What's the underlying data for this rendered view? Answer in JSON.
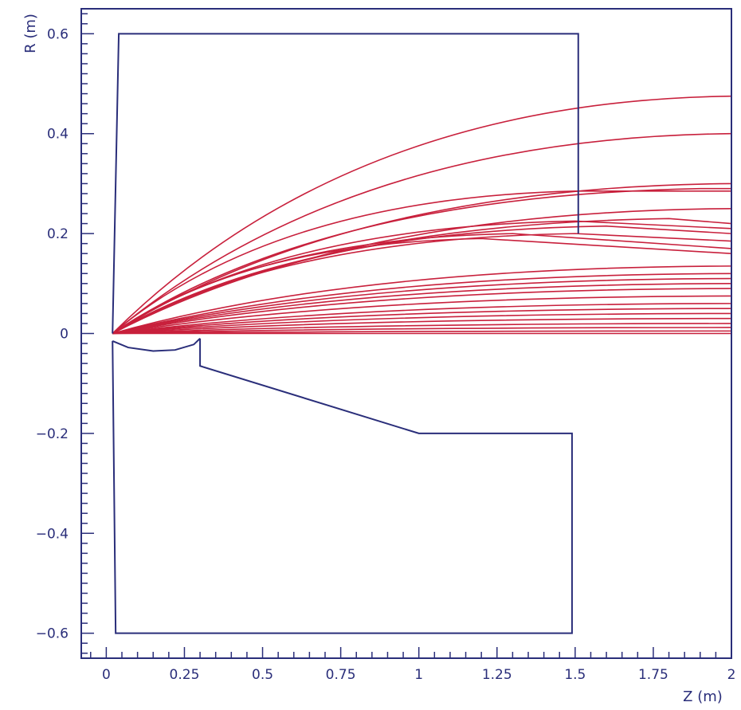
{
  "chart_data": {
    "type": "line",
    "title": "",
    "xlabel": "Z (m)",
    "ylabel": "R (m)",
    "xlim": [
      -0.08,
      2.0
    ],
    "ylim": [
      -0.65,
      0.65
    ],
    "xticks": [
      {
        "value": 0,
        "label": "0"
      },
      {
        "value": 0.25,
        "label": "0.25"
      },
      {
        "value": 0.5,
        "label": "0.5"
      },
      {
        "value": 0.75,
        "label": "0.75"
      },
      {
        "value": 1,
        "label": "1"
      },
      {
        "value": 1.25,
        "label": "1.25"
      },
      {
        "value": 1.5,
        "label": "1.5"
      },
      {
        "value": 1.75,
        "label": "1.75"
      },
      {
        "value": 2,
        "label": "2"
      }
    ],
    "x_minor_step": 0.05,
    "yticks": [
      {
        "value": 0.6,
        "label": "0.6"
      },
      {
        "value": 0.4,
        "label": "0.4"
      },
      {
        "value": 0.2,
        "label": "0.2"
      },
      {
        "value": 0,
        "label": "0"
      },
      {
        "value": -0.2,
        "label": "−0.2"
      },
      {
        "value": -0.4,
        "label": "−0.4"
      },
      {
        "value": -0.6,
        "label": "−0.6"
      }
    ],
    "y_minor_step": 0.04,
    "grid": false,
    "colors": {
      "frame": "#2a2e7a",
      "geometry": "#2a2e7a",
      "trajectories": "#c8203c"
    },
    "geometry": [
      {
        "points": [
          [
            0.02,
            0
          ],
          [
            0.04,
            0.6
          ],
          [
            1.51,
            0.6
          ],
          [
            1.51,
            0.2
          ]
        ]
      },
      {
        "points": [
          [
            0.02,
            -0.015
          ],
          [
            0.03,
            -0.6
          ],
          [
            1.49,
            -0.6
          ],
          [
            1.49,
            -0.2
          ],
          [
            1.0,
            -0.2
          ],
          [
            0.3,
            -0.065
          ],
          [
            0.3,
            -0.01
          ]
        ]
      },
      {
        "points": [
          [
            0.02,
            -0.015
          ],
          [
            0.07,
            -0.028
          ],
          [
            0.15,
            -0.035
          ],
          [
            0.22,
            -0.033
          ],
          [
            0.28,
            -0.022
          ],
          [
            0.3,
            -0.01
          ]
        ]
      }
    ],
    "trajectories": [
      {
        "end": [
          2.0,
          0.475
        ],
        "peak": null
      },
      {
        "end": [
          2.0,
          0.4
        ],
        "peak": null
      },
      {
        "end": [
          2.0,
          0.3
        ],
        "peak": [
          2.0,
          0.3
        ]
      },
      {
        "end": [
          2.0,
          0.285
        ],
        "peak": [
          1.5,
          0.285
        ]
      },
      {
        "end": [
          2.0,
          0.29
        ],
        "peak": [
          1.9,
          0.29
        ]
      },
      {
        "end": [
          2.0,
          0.25
        ],
        "peak": null
      },
      {
        "end": [
          2.0,
          0.22
        ],
        "peak": [
          1.8,
          0.23
        ]
      },
      {
        "end": [
          2.0,
          0.21
        ],
        "peak": [
          1.5,
          0.225
        ]
      },
      {
        "end": [
          2.0,
          0.2
        ],
        "peak": [
          1.6,
          0.215
        ]
      },
      {
        "end": [
          2.0,
          0.185
        ],
        "peak": [
          1.5,
          0.2
        ]
      },
      {
        "end": [
          2.0,
          0.17
        ],
        "peak": [
          1.3,
          0.2
        ]
      },
      {
        "end": [
          2.0,
          0.16
        ],
        "peak": [
          1.2,
          0.19
        ]
      },
      {
        "end": [
          2.0,
          0.135
        ],
        "peak": null
      },
      {
        "end": [
          2.0,
          0.12
        ],
        "peak": null
      },
      {
        "end": [
          2.0,
          0.11
        ],
        "peak": null
      },
      {
        "end": [
          2.0,
          0.1
        ],
        "peak": null
      },
      {
        "end": [
          2.0,
          0.09
        ],
        "peak": null
      },
      {
        "end": [
          2.0,
          0.075
        ],
        "peak": null
      },
      {
        "end": [
          2.0,
          0.06
        ],
        "peak": null
      },
      {
        "end": [
          2.0,
          0.05
        ],
        "peak": null
      },
      {
        "end": [
          2.0,
          0.04
        ],
        "peak": null
      },
      {
        "end": [
          2.0,
          0.03
        ],
        "peak": null
      },
      {
        "end": [
          2.0,
          0.02
        ],
        "peak": null
      },
      {
        "end": [
          2.0,
          0.012
        ],
        "peak": null
      },
      {
        "end": [
          2.0,
          0.005
        ],
        "peak": null
      },
      {
        "end": [
          2.0,
          0.0
        ],
        "peak": null
      }
    ],
    "trajectory_origin": [
      0.02,
      0.0
    ]
  }
}
